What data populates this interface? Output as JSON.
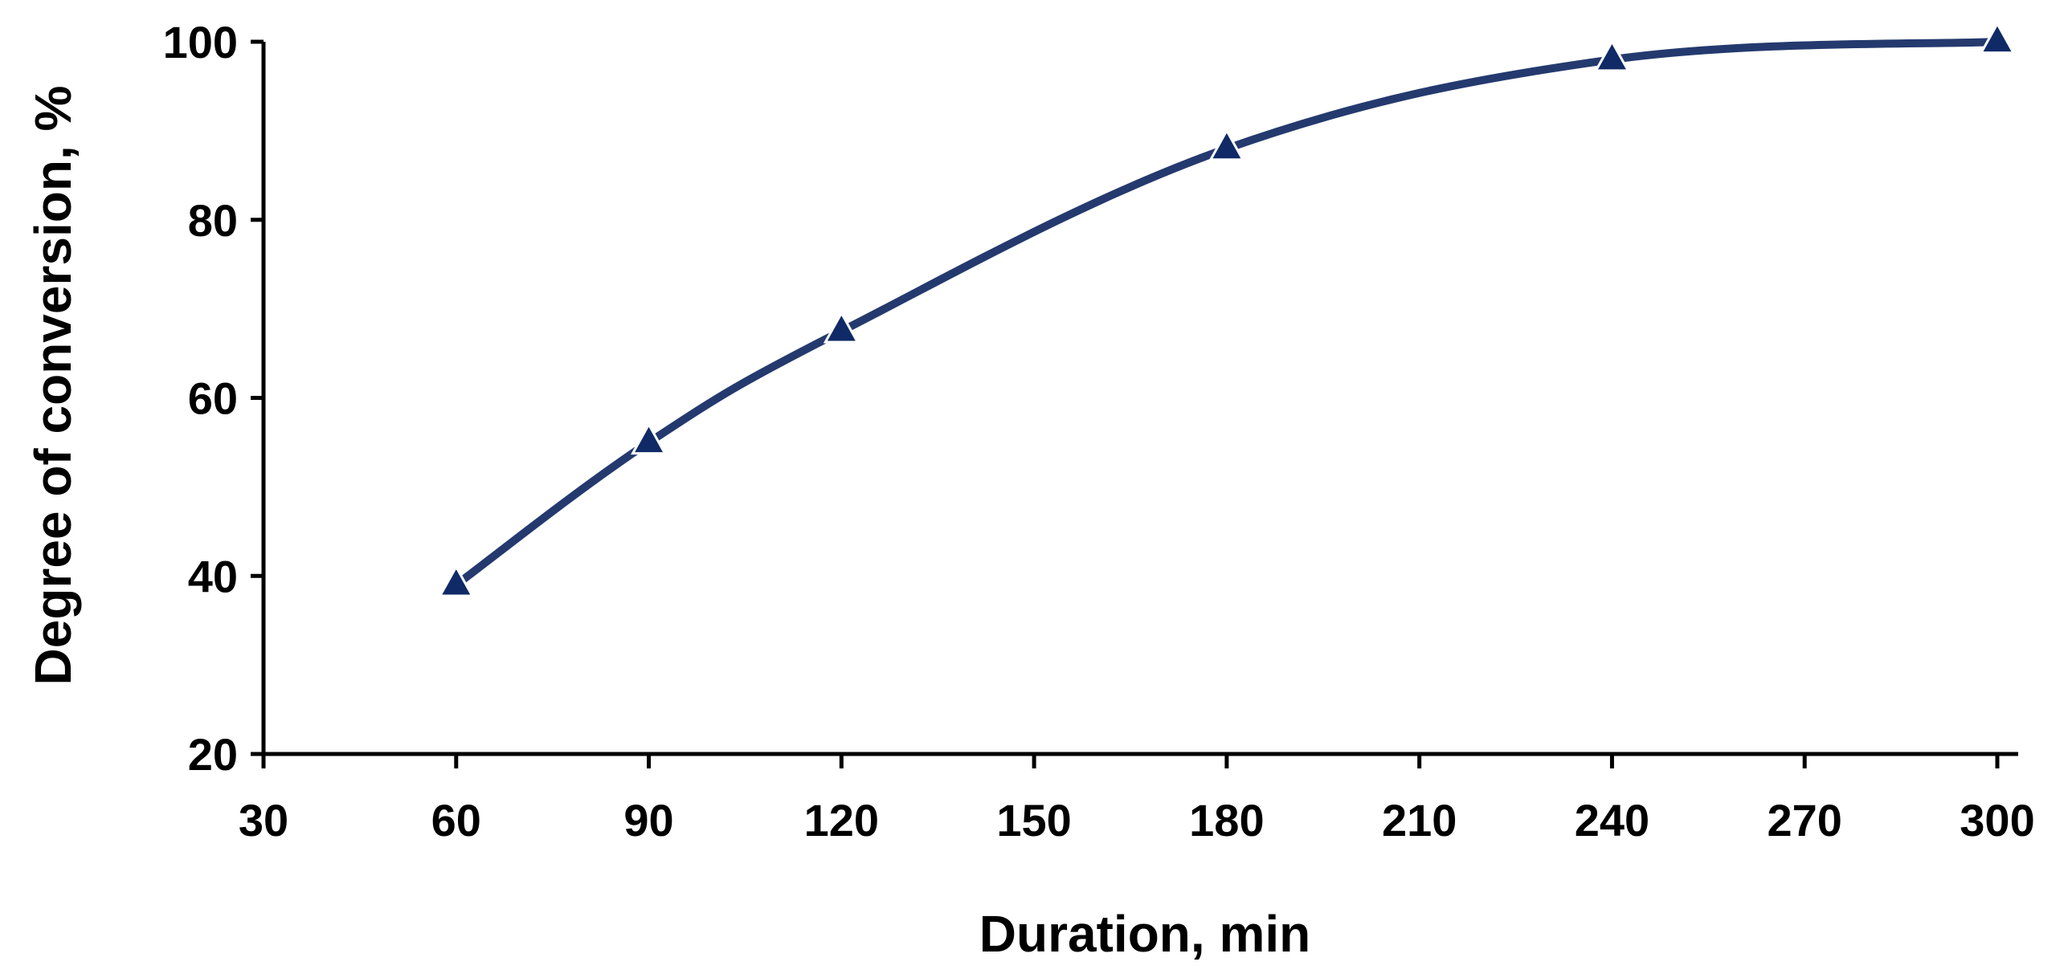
{
  "chart_data": {
    "type": "line",
    "title": "",
    "xlabel": "Duration, min",
    "ylabel": "Degree of conversion, %",
    "xlim": [
      30,
      300
    ],
    "ylim": [
      20,
      100
    ],
    "x_ticks": [
      30,
      60,
      90,
      120,
      150,
      180,
      210,
      240,
      270,
      300
    ],
    "y_ticks": [
      20,
      40,
      60,
      80,
      100
    ],
    "x_tick_labels": [
      "30",
      "60",
      "90",
      "120",
      "150",
      "180",
      "210",
      "240",
      "270",
      "300"
    ],
    "y_tick_labels": [
      "20",
      "40",
      "60",
      "80",
      "100"
    ],
    "grid": false,
    "legend": "none",
    "marker": "triangle",
    "line_color": "#243a6e",
    "marker_color": "#0f2a66",
    "series": [
      {
        "x": [
          60,
          90,
          120,
          180,
          240,
          300
        ],
        "y": [
          39,
          55,
          67.5,
          88,
          98,
          100
        ]
      }
    ]
  }
}
